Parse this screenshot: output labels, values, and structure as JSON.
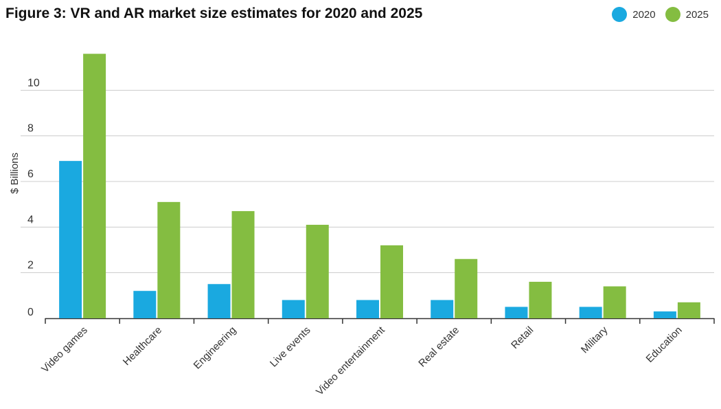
{
  "chart_data": {
    "type": "bar",
    "title": "Figure 3: VR and AR market size estimates for 2020 and 2025",
    "ylabel": "$ Billions",
    "xlabel": "",
    "ylim": [
      0,
      12
    ],
    "yticks": [
      0,
      2,
      4,
      6,
      8,
      10
    ],
    "grid": true,
    "legend_position": "top-right",
    "categories": [
      "Video games",
      "Healthcare",
      "Engineering",
      "Live events",
      "Video entertainment",
      "Real estate",
      "Retail",
      "Military",
      "Education"
    ],
    "series": [
      {
        "name": "2020",
        "color": "#1aa9e0",
        "values": [
          6.9,
          1.2,
          1.5,
          0.8,
          0.8,
          0.8,
          0.5,
          0.5,
          0.3
        ]
      },
      {
        "name": "2025",
        "color": "#84bd41",
        "values": [
          11.6,
          5.1,
          4.7,
          4.1,
          3.2,
          2.6,
          1.6,
          1.4,
          0.7
        ]
      }
    ]
  }
}
